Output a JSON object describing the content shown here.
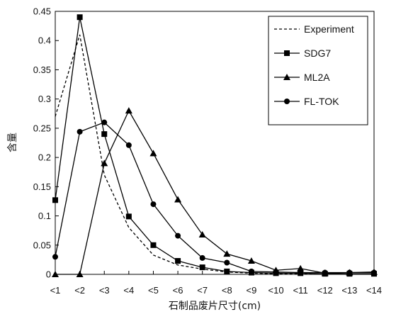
{
  "chart_data": {
    "type": "line",
    "xlabel": "石制品废片尺寸(cm)",
    "ylabel": "含量",
    "ylim": [
      0,
      0.45
    ],
    "yticks": [
      "0",
      "0.05",
      "0.1",
      "0.15",
      "0.2",
      "0.25",
      "0.3",
      "0.35",
      "0.4",
      "0.45"
    ],
    "categories": [
      "<1",
      "<2",
      "<3",
      "<4",
      "<5",
      "<6",
      "<7",
      "<8",
      "<9",
      "<10",
      "<11",
      "<12",
      "<13",
      "<14"
    ],
    "legend_position": "top-right",
    "series": [
      {
        "name": "Experiment",
        "style": "dashed",
        "marker": "none",
        "values": [
          0.27,
          0.41,
          0.17,
          0.08,
          0.033,
          0.016,
          0.009,
          0.004,
          0.002,
          0.001,
          0.001,
          0.001,
          0.001,
          0.001
        ]
      },
      {
        "name": "SDG7",
        "style": "solid",
        "marker": "square",
        "values": [
          0.127,
          0.44,
          0.24,
          0.099,
          0.05,
          0.023,
          0.012,
          0.005,
          0.003,
          0.002,
          0.002,
          0.001,
          0.001,
          0.001
        ]
      },
      {
        "name": "ML2A",
        "style": "solid",
        "marker": "triangle",
        "values": [
          0,
          0,
          0.19,
          0.28,
          0.207,
          0.128,
          0.068,
          0.035,
          0.023,
          0.007,
          0.01,
          0.002,
          0.003,
          0.004
        ]
      },
      {
        "name": "FL-TOK",
        "style": "solid",
        "marker": "circle",
        "values": [
          0.03,
          0.244,
          0.26,
          0.221,
          0.12,
          0.066,
          0.028,
          0.02,
          0.005,
          0.004,
          0.003,
          0.003,
          0.003,
          0.003
        ]
      }
    ]
  }
}
